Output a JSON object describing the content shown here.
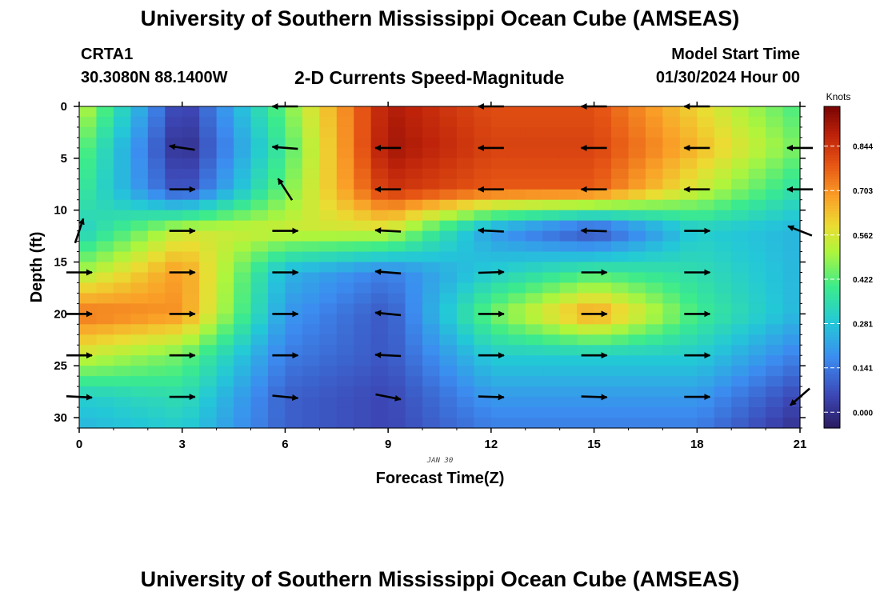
{
  "title": "University of Southern Mississippi Ocean Cube (AMSEAS)",
  "station": {
    "id": "CRTA1",
    "coords": "30.3080N  88.1400W"
  },
  "subtitle": "2-D Currents Speed-Magnitude",
  "model_start": {
    "label": "Model Start Time",
    "value": "01/30/2024 Hour 00"
  },
  "date_label": "JAN 30",
  "colors": {
    "arrow": "#000000",
    "palette_low": "#2a1a5e",
    "palette_high": "#7a0403"
  },
  "chart_data": {
    "type": "heatmap",
    "title": "2-D Currents Speed-Magnitude",
    "xlabel": "Forecast Time(Z)",
    "ylabel": "Depth (ft)",
    "x_ticks": [
      0,
      3,
      6,
      9,
      12,
      15,
      18,
      21
    ],
    "y_ticks": [
      0,
      5,
      10,
      15,
      20,
      25,
      30
    ],
    "xlim": [
      0,
      21
    ],
    "ylim": [
      31,
      0
    ],
    "colorbar": {
      "unit": "Knots",
      "ticks": [
        "0.000",
        "0.141",
        "0.281",
        "0.422",
        "0.562",
        "0.703",
        "0.844"
      ],
      "range": [
        -0.05,
        0.97
      ]
    },
    "times": [
      0,
      3,
      6,
      9,
      12,
      15,
      18,
      21
    ],
    "depths": [
      0,
      4,
      8,
      12,
      16,
      20,
      24,
      28,
      31
    ],
    "speed_knots": [
      [
        0.55,
        0.02,
        0.45,
        0.9,
        0.8,
        0.8,
        0.6,
        0.4
      ],
      [
        0.45,
        -0.02,
        0.4,
        0.92,
        0.82,
        0.82,
        0.65,
        0.45
      ],
      [
        0.4,
        0.05,
        0.45,
        0.85,
        0.78,
        0.78,
        0.55,
        0.35
      ],
      [
        0.3,
        0.55,
        0.55,
        0.55,
        0.2,
        0.05,
        0.3,
        0.25
      ],
      [
        0.5,
        0.7,
        0.25,
        0.15,
        0.3,
        0.4,
        0.35,
        0.25
      ],
      [
        0.75,
        0.7,
        0.2,
        0.08,
        0.45,
        0.7,
        0.4,
        0.25
      ],
      [
        0.55,
        0.45,
        0.15,
        0.08,
        0.3,
        0.3,
        0.3,
        0.15
      ],
      [
        0.3,
        0.35,
        0.1,
        0.05,
        0.2,
        0.2,
        0.2,
        0.05
      ],
      [
        0.25,
        0.3,
        0.1,
        0.05,
        0.15,
        0.15,
        0.15,
        0.0
      ]
    ],
    "vectors": [
      {
        "t": 0,
        "d": 12,
        "u": 0.3,
        "v": 0.9
      },
      {
        "t": 0,
        "d": 16,
        "u": 1,
        "v": 0
      },
      {
        "t": 0,
        "d": 20,
        "u": 1,
        "v": 0
      },
      {
        "t": 0,
        "d": 24,
        "u": 1,
        "v": 0
      },
      {
        "t": 0,
        "d": 28,
        "u": 1,
        "v": -0.05
      },
      {
        "t": 3,
        "d": 4,
        "u": -1,
        "v": 0.15
      },
      {
        "t": 3,
        "d": 8,
        "u": 1,
        "v": 0
      },
      {
        "t": 3,
        "d": 12,
        "u": 1,
        "v": 0
      },
      {
        "t": 3,
        "d": 16,
        "u": 1,
        "v": 0
      },
      {
        "t": 3,
        "d": 20,
        "u": 1,
        "v": 0
      },
      {
        "t": 3,
        "d": 24,
        "u": 1,
        "v": 0
      },
      {
        "t": 3,
        "d": 28,
        "u": 1,
        "v": 0
      },
      {
        "t": 6,
        "d": 0,
        "u": -1,
        "v": 0
      },
      {
        "t": 6,
        "d": 4,
        "u": -1,
        "v": 0.08
      },
      {
        "t": 6,
        "d": 8,
        "u": -0.55,
        "v": 0.85
      },
      {
        "t": 6,
        "d": 12,
        "u": 1,
        "v": 0
      },
      {
        "t": 6,
        "d": 16,
        "u": 1,
        "v": 0
      },
      {
        "t": 6,
        "d": 20,
        "u": 1,
        "v": 0
      },
      {
        "t": 6,
        "d": 24,
        "u": 1,
        "v": 0
      },
      {
        "t": 6,
        "d": 28,
        "u": 1,
        "v": -0.1
      },
      {
        "t": 9,
        "d": 4,
        "u": -1,
        "v": 0
      },
      {
        "t": 9,
        "d": 8,
        "u": -1,
        "v": 0
      },
      {
        "t": 9,
        "d": 12,
        "u": -1,
        "v": 0.05
      },
      {
        "t": 9,
        "d": 16,
        "u": -1,
        "v": 0.08
      },
      {
        "t": 9,
        "d": 20,
        "u": -1,
        "v": 0.1
      },
      {
        "t": 9,
        "d": 24,
        "u": -1,
        "v": 0.05
      },
      {
        "t": 9,
        "d": 28,
        "u": 1,
        "v": -0.2
      },
      {
        "t": 12,
        "d": 0,
        "u": -1,
        "v": 0
      },
      {
        "t": 12,
        "d": 4,
        "u": -1,
        "v": 0
      },
      {
        "t": 12,
        "d": 8,
        "u": -1,
        "v": 0
      },
      {
        "t": 12,
        "d": 12,
        "u": -1,
        "v": 0.05
      },
      {
        "t": 12,
        "d": 16,
        "u": 1,
        "v": 0.03
      },
      {
        "t": 12,
        "d": 20,
        "u": 1,
        "v": 0
      },
      {
        "t": 12,
        "d": 24,
        "u": 1,
        "v": 0
      },
      {
        "t": 12,
        "d": 28,
        "u": 1,
        "v": -0.03
      },
      {
        "t": 15,
        "d": 0,
        "u": -1,
        "v": 0
      },
      {
        "t": 15,
        "d": 4,
        "u": -1,
        "v": 0
      },
      {
        "t": 15,
        "d": 8,
        "u": -1,
        "v": 0
      },
      {
        "t": 15,
        "d": 12,
        "u": -1,
        "v": 0.03
      },
      {
        "t": 15,
        "d": 16,
        "u": 1,
        "v": 0
      },
      {
        "t": 15,
        "d": 20,
        "u": 1,
        "v": 0
      },
      {
        "t": 15,
        "d": 24,
        "u": 1,
        "v": 0
      },
      {
        "t": 15,
        "d": 28,
        "u": 1,
        "v": -0.03
      },
      {
        "t": 18,
        "d": 0,
        "u": -1,
        "v": 0
      },
      {
        "t": 18,
        "d": 4,
        "u": -1,
        "v": 0
      },
      {
        "t": 18,
        "d": 8,
        "u": -1,
        "v": 0
      },
      {
        "t": 18,
        "d": 12,
        "u": 1,
        "v": 0
      },
      {
        "t": 18,
        "d": 16,
        "u": 1,
        "v": 0
      },
      {
        "t": 18,
        "d": 20,
        "u": 1,
        "v": 0
      },
      {
        "t": 18,
        "d": 24,
        "u": 1,
        "v": 0
      },
      {
        "t": 18,
        "d": 28,
        "u": 1,
        "v": 0
      },
      {
        "t": 21,
        "d": 4,
        "u": -1,
        "v": 0
      },
      {
        "t": 21,
        "d": 8,
        "u": -1,
        "v": 0
      },
      {
        "t": 21,
        "d": 12,
        "u": -0.9,
        "v": 0.35
      },
      {
        "t": 21,
        "d": 28,
        "u": -0.75,
        "v": -0.65
      }
    ]
  }
}
